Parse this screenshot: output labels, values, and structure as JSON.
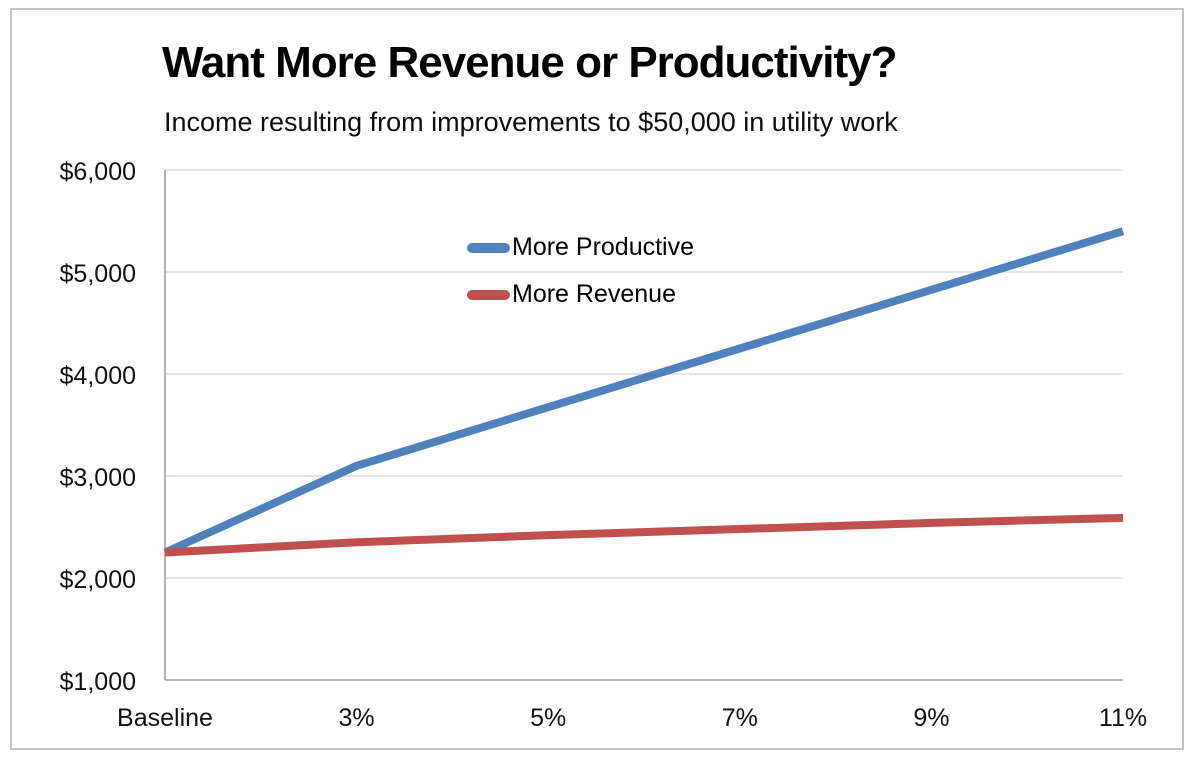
{
  "chart_data": {
    "type": "line",
    "title": "Want More Revenue or Productivity?",
    "subtitle": "Income resulting from improvements to $50,000 in utility work",
    "categories": [
      "Baseline",
      "3%",
      "5%",
      "7%",
      "9%",
      "11%"
    ],
    "series": [
      {
        "name": "More Productive",
        "color": "#4F81BD",
        "values": [
          2250,
          3100,
          3675,
          4250,
          4825,
          5400
        ]
      },
      {
        "name": "More Revenue",
        "color": "#C0504D",
        "values": [
          2250,
          2350,
          2420,
          2480,
          2540,
          2590
        ]
      }
    ],
    "xlabel": "",
    "ylabel": "",
    "ylim": [
      1000,
      6000
    ],
    "ytick_step": 1000,
    "ytick_labels": [
      "$1,000",
      "$2,000",
      "$3,000",
      "$4,000",
      "$5,000",
      "$6,000"
    ],
    "grid": true,
    "legend_position": "inside-top-center",
    "colors": {
      "background": "#FFFFFF",
      "frame_border": "#C4C4C4",
      "gridline": "#D8DEE6",
      "axis": "#9A9A9A",
      "text": "#111111"
    }
  }
}
